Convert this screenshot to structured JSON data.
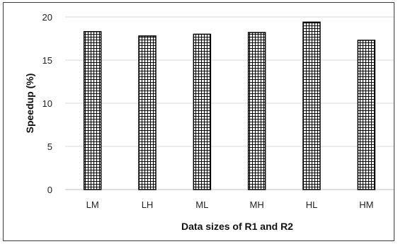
{
  "chart_data": {
    "type": "bar",
    "title": "",
    "xlabel": "Data sizes of R1 and R2",
    "ylabel": "Speedup (%)",
    "categories": [
      "LM",
      "LH",
      "ML",
      "MH",
      "HL",
      "HM"
    ],
    "values": [
      18.3,
      17.8,
      18.0,
      18.2,
      19.4,
      17.3
    ],
    "ylim": [
      0,
      20
    ],
    "yticks": [
      0,
      5,
      10,
      15,
      20
    ],
    "grid": "horizontal",
    "legend": "none",
    "bar_pattern": "grid-hatch",
    "colors": {
      "bar_fill": "#ffffff",
      "bar_hatch": "#000000",
      "gridline": "#d9d9d9",
      "axis": "#bfbfbf"
    }
  }
}
